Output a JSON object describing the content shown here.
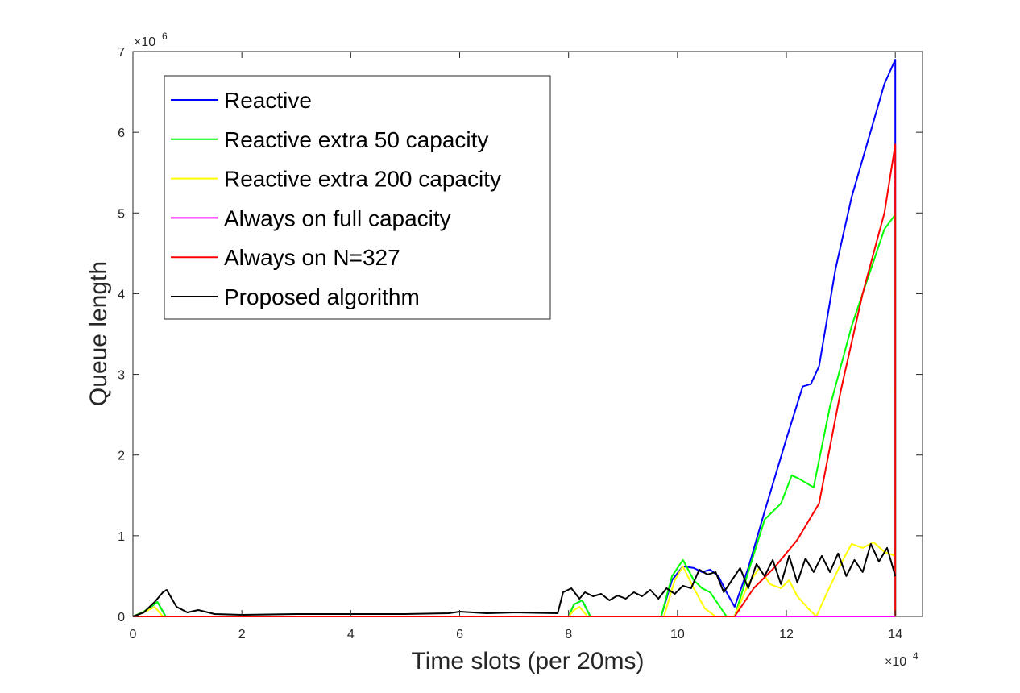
{
  "chart_data": {
    "type": "line",
    "title": "",
    "xlabel": "Time slots (per 20ms)",
    "ylabel": "Queue length",
    "xlim": [
      0,
      14.5
    ],
    "ylim": [
      0,
      7
    ],
    "x_exponent_label": "×10",
    "x_exponent_power": "4",
    "y_exponent_label": "×10",
    "y_exponent_power": "6",
    "x_ticks": [
      0,
      2,
      4,
      6,
      8,
      10,
      12,
      14
    ],
    "x_tick_labels": [
      "0",
      "2",
      "4",
      "6",
      "8",
      "10",
      "12",
      "14"
    ],
    "y_ticks": [
      0,
      1,
      2,
      3,
      4,
      5,
      6,
      7
    ],
    "y_tick_labels": [
      "0",
      "1",
      "2",
      "3",
      "4",
      "5",
      "6",
      "7"
    ],
    "legend_position": "top-left",
    "series": [
      {
        "name": "Reactive",
        "color": "#0000ff",
        "x": [
          0,
          0.2,
          0.45,
          0.6,
          8.0,
          8.1,
          8.25,
          8.4,
          9.7,
          9.9,
          10.1,
          10.3,
          10.45,
          10.6,
          10.75,
          10.9,
          11.05,
          11.3,
          11.6,
          12.0,
          12.3,
          12.45,
          12.6,
          12.9,
          13.2,
          13.5,
          13.8,
          14.0,
          14.0
        ],
        "y": [
          0,
          0.05,
          0.18,
          0,
          0,
          0.15,
          0.2,
          0,
          0,
          0.45,
          0.62,
          0.6,
          0.55,
          0.58,
          0.5,
          0.3,
          0.12,
          0.6,
          1.3,
          2.2,
          2.85,
          2.88,
          3.1,
          4.3,
          5.2,
          5.9,
          6.6,
          6.9,
          0
        ]
      },
      {
        "name": "Reactive extra 50 capacity",
        "color": "#00ff00",
        "x": [
          0,
          0.2,
          0.45,
          0.6,
          8.0,
          8.1,
          8.25,
          8.4,
          9.7,
          9.9,
          10.1,
          10.3,
          10.45,
          10.6,
          10.75,
          10.9,
          11.05,
          11.3,
          11.6,
          11.9,
          12.1,
          12.25,
          12.5,
          12.8,
          13.2,
          13.5,
          13.8,
          14.0,
          14.0
        ],
        "y": [
          0,
          0.06,
          0.18,
          0,
          0,
          0.15,
          0.2,
          0,
          0,
          0.5,
          0.7,
          0.45,
          0.35,
          0.3,
          0.15,
          0,
          0,
          0.55,
          1.2,
          1.4,
          1.75,
          1.7,
          1.6,
          2.6,
          3.6,
          4.2,
          4.8,
          4.98,
          0
        ]
      },
      {
        "name": "Reactive extra 200 capacity",
        "color": "#ffff00",
        "x": [
          0,
          0.2,
          0.4,
          0.55,
          8.0,
          8.1,
          8.2,
          8.35,
          9.75,
          9.95,
          10.1,
          10.3,
          10.5,
          10.7,
          11.05,
          11.3,
          11.5,
          11.7,
          11.9,
          12.05,
          12.2,
          12.4,
          12.55,
          12.75,
          13.0,
          13.2,
          13.4,
          13.6,
          13.8,
          14.0
        ],
        "y": [
          0,
          0.05,
          0.12,
          0,
          0,
          0.08,
          0.12,
          0,
          0,
          0.45,
          0.62,
          0.35,
          0.1,
          0,
          0,
          0.4,
          0.6,
          0.4,
          0.35,
          0.45,
          0.25,
          0.1,
          0,
          0.3,
          0.65,
          0.9,
          0.85,
          0.92,
          0.8,
          0.75
        ]
      },
      {
        "name": "Always on full capacity",
        "color": "#ff00ff",
        "x": [
          0,
          14.0
        ],
        "y": [
          0,
          0
        ]
      },
      {
        "name": "Always on N=327",
        "color": "#ff0000",
        "x": [
          0,
          11.05,
          11.4,
          11.8,
          12.2,
          12.6,
          13.0,
          13.4,
          13.8,
          14.0,
          14.0
        ],
        "y": [
          0,
          0,
          0.35,
          0.62,
          0.95,
          1.4,
          2.8,
          4.0,
          5.0,
          5.85,
          0
        ]
      },
      {
        "name": "Proposed algorithm",
        "color": "#000000",
        "x": [
          0,
          0.2,
          0.4,
          0.55,
          0.62,
          0.8,
          1.0,
          1.2,
          1.5,
          2.0,
          3.0,
          4.0,
          5.0,
          5.8,
          6.0,
          6.5,
          7.0,
          7.8,
          7.9,
          8.05,
          8.2,
          8.3,
          8.45,
          8.6,
          8.75,
          8.9,
          9.05,
          9.2,
          9.35,
          9.5,
          9.65,
          9.8,
          9.95,
          10.1,
          10.25,
          10.4,
          10.55,
          10.7,
          10.85,
          11.0,
          11.15,
          11.3,
          11.45,
          11.6,
          11.75,
          11.9,
          12.05,
          12.2,
          12.35,
          12.5,
          12.65,
          12.8,
          12.95,
          13.1,
          13.25,
          13.4,
          13.55,
          13.7,
          13.85,
          14.0
        ],
        "y": [
          0,
          0.05,
          0.18,
          0.3,
          0.33,
          0.12,
          0.05,
          0.08,
          0.03,
          0.02,
          0.03,
          0.03,
          0.03,
          0.04,
          0.06,
          0.04,
          0.05,
          0.04,
          0.3,
          0.35,
          0.22,
          0.3,
          0.25,
          0.28,
          0.2,
          0.26,
          0.22,
          0.3,
          0.25,
          0.33,
          0.22,
          0.35,
          0.28,
          0.38,
          0.35,
          0.58,
          0.52,
          0.55,
          0.3,
          0.45,
          0.6,
          0.35,
          0.65,
          0.5,
          0.7,
          0.4,
          0.75,
          0.42,
          0.72,
          0.55,
          0.75,
          0.55,
          0.78,
          0.5,
          0.7,
          0.55,
          0.9,
          0.68,
          0.85,
          0.5
        ]
      }
    ]
  }
}
